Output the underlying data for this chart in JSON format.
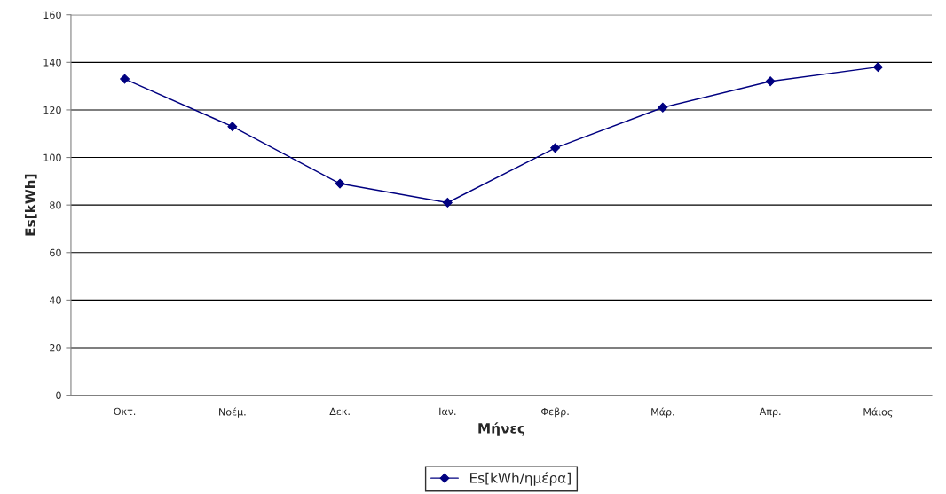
{
  "chart_data": {
    "type": "line",
    "xlabel": "Μήνες",
    "ylabel": "Es[kWh]",
    "categories": [
      "Οκτ.",
      "Νοέμ.",
      "Δεκ.",
      "Ιαν.",
      "Φεβρ.",
      "Μάρ.",
      "Απρ.",
      "Μάιος"
    ],
    "series": [
      {
        "name": "Es[kWh/ημέρα]",
        "color": "#000080",
        "values": [
          133,
          113,
          89,
          81,
          104,
          121,
          132,
          138
        ]
      }
    ],
    "ylim": [
      0,
      160
    ],
    "yticks": [
      0,
      20,
      40,
      60,
      80,
      100,
      120,
      140,
      160
    ],
    "grid": "y",
    "legend": "bottom",
    "marker": "diamond",
    "line_style": "solid"
  }
}
